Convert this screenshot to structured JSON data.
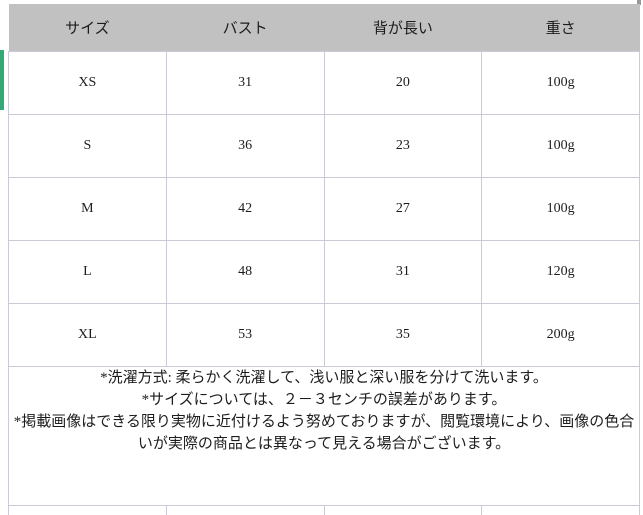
{
  "size_chart": {
    "headers": [
      "サイズ",
      "バスト",
      "背が長い",
      "重さ"
    ],
    "rows": [
      [
        "XS",
        "31",
        "20",
        "100g"
      ],
      [
        "S",
        "36",
        "23",
        "100g"
      ],
      [
        "M",
        "42",
        "27",
        "100g"
      ],
      [
        "L",
        "48",
        "31",
        "120g"
      ],
      [
        "XL",
        "53",
        "35",
        "200g"
      ]
    ]
  },
  "notes": [
    "*洗濯方式: 柔らかく洗濯して、浅い服と深い服を分けて洗います。",
    "*サイズについては、２－３センチの誤差があります。",
    "*掲載画像はできる限り実物に近付けるよう努めておりますが、閲覧環境により、画像の色合いが実際の商品とは異なって見える場合がございます。"
  ],
  "colors": {
    "header_bg": "#c1c1c1",
    "border": "#c9ccd6",
    "accent_green": "#36a878",
    "text": "#1c1c1c"
  }
}
